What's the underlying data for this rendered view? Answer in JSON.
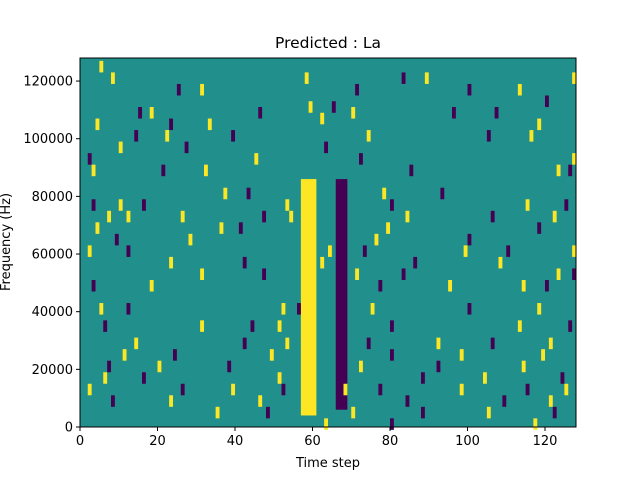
{
  "chart_data": {
    "type": "heatmap",
    "title": "Predicted : La",
    "xlabel": "Time step",
    "ylabel": "Frequency (Hz)",
    "xlim": [
      0,
      128
    ],
    "ylim": [
      0,
      128000
    ],
    "xticks": [
      0,
      20,
      40,
      60,
      80,
      100,
      120
    ],
    "yticks": [
      0,
      20000,
      40000,
      60000,
      80000,
      100000,
      120000
    ],
    "grid": false,
    "legend": "none",
    "colormap": "viridis",
    "colors": {
      "background": "#21908d",
      "high": "#fde725",
      "low": "#440154"
    },
    "values": {
      "background": 0,
      "high": 1,
      "low": -1
    },
    "dense_bands": [
      {
        "x_start": 57,
        "x_end": 61,
        "value": 1,
        "y_start": 4000,
        "y_end": 86000
      },
      {
        "x_start": 66,
        "x_end": 69,
        "value": -1,
        "y_start": 6000,
        "y_end": 86000
      }
    ],
    "highlighted_cells": [
      {
        "x": 5,
        "y": 126000,
        "value": 1
      },
      {
        "x": 8,
        "y": 122000,
        "value": 1
      },
      {
        "x": 25,
        "y": 118000,
        "value": -1
      },
      {
        "x": 31,
        "y": 118000,
        "value": 1
      },
      {
        "x": 58,
        "y": 122000,
        "value": 1
      },
      {
        "x": 59,
        "y": 112000,
        "value": 1
      },
      {
        "x": 62,
        "y": 108000,
        "value": 1
      },
      {
        "x": 65,
        "y": 112000,
        "value": -1
      },
      {
        "x": 71,
        "y": 118000,
        "value": -1
      },
      {
        "x": 83,
        "y": 122000,
        "value": -1
      },
      {
        "x": 89,
        "y": 122000,
        "value": 1
      },
      {
        "x": 100,
        "y": 118000,
        "value": -1
      },
      {
        "x": 113,
        "y": 118000,
        "value": 1
      },
      {
        "x": 120,
        "y": 114000,
        "value": -1
      },
      {
        "x": 127,
        "y": 122000,
        "value": 1
      },
      {
        "x": 4,
        "y": 106000,
        "value": 1
      },
      {
        "x": 15,
        "y": 110000,
        "value": -1
      },
      {
        "x": 18,
        "y": 110000,
        "value": 1
      },
      {
        "x": 23,
        "y": 106000,
        "value": -1
      },
      {
        "x": 33,
        "y": 106000,
        "value": 1
      },
      {
        "x": 46,
        "y": 110000,
        "value": -1
      },
      {
        "x": 70,
        "y": 110000,
        "value": 1
      },
      {
        "x": 96,
        "y": 110000,
        "value": -1
      },
      {
        "x": 107,
        "y": 110000,
        "value": -1
      },
      {
        "x": 118,
        "y": 106000,
        "value": 1
      },
      {
        "x": 14,
        "y": 102000,
        "value": -1
      },
      {
        "x": 22,
        "y": 102000,
        "value": 1
      },
      {
        "x": 39,
        "y": 102000,
        "value": -1
      },
      {
        "x": 74,
        "y": 102000,
        "value": 1
      },
      {
        "x": 105,
        "y": 102000,
        "value": -1
      },
      {
        "x": 116,
        "y": 102000,
        "value": 1
      },
      {
        "x": 10,
        "y": 98000,
        "value": 1
      },
      {
        "x": 27,
        "y": 98000,
        "value": -1
      },
      {
        "x": 63,
        "y": 98000,
        "value": -1
      },
      {
        "x": 2,
        "y": 94000,
        "value": -1
      },
      {
        "x": 45,
        "y": 94000,
        "value": 1
      },
      {
        "x": 72,
        "y": 94000,
        "value": -1
      },
      {
        "x": 127,
        "y": 94000,
        "value": 1
      },
      {
        "x": 3,
        "y": 90000,
        "value": 1
      },
      {
        "x": 21,
        "y": 90000,
        "value": -1
      },
      {
        "x": 32,
        "y": 90000,
        "value": 1
      },
      {
        "x": 85,
        "y": 90000,
        "value": -1
      },
      {
        "x": 123,
        "y": 90000,
        "value": 1
      },
      {
        "x": 126,
        "y": 90000,
        "value": -1
      },
      {
        "x": 37,
        "y": 82000,
        "value": 1
      },
      {
        "x": 43,
        "y": 82000,
        "value": -1
      },
      {
        "x": 78,
        "y": 82000,
        "value": 1
      },
      {
        "x": 93,
        "y": 82000,
        "value": -1
      },
      {
        "x": 3,
        "y": 78000,
        "value": -1
      },
      {
        "x": 10,
        "y": 78000,
        "value": 1
      },
      {
        "x": 16,
        "y": 78000,
        "value": -1
      },
      {
        "x": 53,
        "y": 78000,
        "value": 1
      },
      {
        "x": 80,
        "y": 78000,
        "value": -1
      },
      {
        "x": 115,
        "y": 78000,
        "value": 1
      },
      {
        "x": 125,
        "y": 78000,
        "value": -1
      },
      {
        "x": 7,
        "y": 74000,
        "value": 1
      },
      {
        "x": 12,
        "y": 74000,
        "value": 1
      },
      {
        "x": 26,
        "y": 74000,
        "value": 1
      },
      {
        "x": 47,
        "y": 74000,
        "value": -1
      },
      {
        "x": 54,
        "y": 74000,
        "value": 1
      },
      {
        "x": 84,
        "y": 74000,
        "value": 1
      },
      {
        "x": 106,
        "y": 74000,
        "value": -1
      },
      {
        "x": 122,
        "y": 74000,
        "value": 1
      },
      {
        "x": 4,
        "y": 70000,
        "value": 1
      },
      {
        "x": 36,
        "y": 70000,
        "value": 1
      },
      {
        "x": 41,
        "y": 70000,
        "value": -1
      },
      {
        "x": 79,
        "y": 70000,
        "value": 1
      },
      {
        "x": 118,
        "y": 70000,
        "value": -1
      },
      {
        "x": 9,
        "y": 66000,
        "value": -1
      },
      {
        "x": 28,
        "y": 66000,
        "value": 1
      },
      {
        "x": 76,
        "y": 66000,
        "value": 1
      },
      {
        "x": 100,
        "y": 66000,
        "value": -1
      },
      {
        "x": 2,
        "y": 62000,
        "value": 1
      },
      {
        "x": 12,
        "y": 62000,
        "value": -1
      },
      {
        "x": 64,
        "y": 62000,
        "value": 1
      },
      {
        "x": 73,
        "y": 62000,
        "value": -1
      },
      {
        "x": 99,
        "y": 62000,
        "value": 1
      },
      {
        "x": 110,
        "y": 62000,
        "value": -1
      },
      {
        "x": 127,
        "y": 62000,
        "value": 1
      },
      {
        "x": 23,
        "y": 58000,
        "value": 1
      },
      {
        "x": 42,
        "y": 58000,
        "value": -1
      },
      {
        "x": 62,
        "y": 58000,
        "value": 1
      },
      {
        "x": 86,
        "y": 58000,
        "value": -1
      },
      {
        "x": 108,
        "y": 58000,
        "value": 1
      },
      {
        "x": 31,
        "y": 54000,
        "value": 1
      },
      {
        "x": 47,
        "y": 54000,
        "value": -1
      },
      {
        "x": 71,
        "y": 54000,
        "value": 1
      },
      {
        "x": 83,
        "y": 54000,
        "value": -1
      },
      {
        "x": 123,
        "y": 54000,
        "value": 1
      },
      {
        "x": 127,
        "y": 54000,
        "value": -1
      },
      {
        "x": 3,
        "y": 50000,
        "value": -1
      },
      {
        "x": 18,
        "y": 50000,
        "value": 1
      },
      {
        "x": 77,
        "y": 50000,
        "value": -1
      },
      {
        "x": 95,
        "y": 50000,
        "value": 1
      },
      {
        "x": 114,
        "y": 50000,
        "value": 1
      },
      {
        "x": 120,
        "y": 50000,
        "value": -1
      },
      {
        "x": 5,
        "y": 42000,
        "value": 1
      },
      {
        "x": 12,
        "y": 42000,
        "value": -1
      },
      {
        "x": 52,
        "y": 42000,
        "value": 1
      },
      {
        "x": 56,
        "y": 42000,
        "value": -1
      },
      {
        "x": 75,
        "y": 42000,
        "value": 1
      },
      {
        "x": 100,
        "y": 42000,
        "value": -1
      },
      {
        "x": 118,
        "y": 42000,
        "value": 1
      },
      {
        "x": 6,
        "y": 36000,
        "value": -1
      },
      {
        "x": 31,
        "y": 36000,
        "value": 1
      },
      {
        "x": 44,
        "y": 36000,
        "value": -1
      },
      {
        "x": 51,
        "y": 36000,
        "value": 1
      },
      {
        "x": 80,
        "y": 36000,
        "value": -1
      },
      {
        "x": 113,
        "y": 36000,
        "value": 1
      },
      {
        "x": 126,
        "y": 36000,
        "value": -1
      },
      {
        "x": 14,
        "y": 30000,
        "value": 1
      },
      {
        "x": 42,
        "y": 30000,
        "value": -1
      },
      {
        "x": 53,
        "y": 30000,
        "value": 1
      },
      {
        "x": 74,
        "y": 30000,
        "value": -1
      },
      {
        "x": 92,
        "y": 30000,
        "value": 1
      },
      {
        "x": 106,
        "y": 30000,
        "value": -1
      },
      {
        "x": 121,
        "y": 30000,
        "value": 1
      },
      {
        "x": 11,
        "y": 26000,
        "value": 1
      },
      {
        "x": 24,
        "y": 26000,
        "value": -1
      },
      {
        "x": 49,
        "y": 26000,
        "value": 1
      },
      {
        "x": 80,
        "y": 26000,
        "value": -1
      },
      {
        "x": 98,
        "y": 26000,
        "value": 1
      },
      {
        "x": 119,
        "y": 26000,
        "value": 1
      },
      {
        "x": 7,
        "y": 22000,
        "value": -1
      },
      {
        "x": 20,
        "y": 22000,
        "value": 1
      },
      {
        "x": 38,
        "y": 22000,
        "value": -1
      },
      {
        "x": 72,
        "y": 22000,
        "value": 1
      },
      {
        "x": 92,
        "y": 22000,
        "value": -1
      },
      {
        "x": 114,
        "y": 22000,
        "value": 1
      },
      {
        "x": 6,
        "y": 18000,
        "value": 1
      },
      {
        "x": 16,
        "y": 18000,
        "value": -1
      },
      {
        "x": 51,
        "y": 18000,
        "value": 1
      },
      {
        "x": 88,
        "y": 18000,
        "value": -1
      },
      {
        "x": 104,
        "y": 18000,
        "value": 1
      },
      {
        "x": 124,
        "y": 18000,
        "value": -1
      },
      {
        "x": 2,
        "y": 14000,
        "value": 1
      },
      {
        "x": 26,
        "y": 14000,
        "value": -1
      },
      {
        "x": 39,
        "y": 14000,
        "value": 1
      },
      {
        "x": 52,
        "y": 14000,
        "value": -1
      },
      {
        "x": 68,
        "y": 14000,
        "value": 1
      },
      {
        "x": 77,
        "y": 14000,
        "value": -1
      },
      {
        "x": 98,
        "y": 14000,
        "value": 1
      },
      {
        "x": 115,
        "y": 14000,
        "value": -1
      },
      {
        "x": 125,
        "y": 14000,
        "value": 1
      },
      {
        "x": 8,
        "y": 10000,
        "value": -1
      },
      {
        "x": 23,
        "y": 10000,
        "value": 1
      },
      {
        "x": 46,
        "y": 10000,
        "value": 1
      },
      {
        "x": 84,
        "y": 10000,
        "value": -1
      },
      {
        "x": 109,
        "y": 10000,
        "value": -1
      },
      {
        "x": 121,
        "y": 10000,
        "value": 1
      },
      {
        "x": 35,
        "y": 6000,
        "value": 1
      },
      {
        "x": 48,
        "y": 6000,
        "value": -1
      },
      {
        "x": 70,
        "y": 6000,
        "value": 1
      },
      {
        "x": 88,
        "y": 6000,
        "value": -1
      },
      {
        "x": 105,
        "y": 6000,
        "value": 1
      },
      {
        "x": 122,
        "y": 6000,
        "value": -1
      },
      {
        "x": 63,
        "y": 2000,
        "value": 1
      },
      {
        "x": 80,
        "y": 2000,
        "value": -1
      },
      {
        "x": 117,
        "y": 2000,
        "value": 1
      }
    ]
  }
}
